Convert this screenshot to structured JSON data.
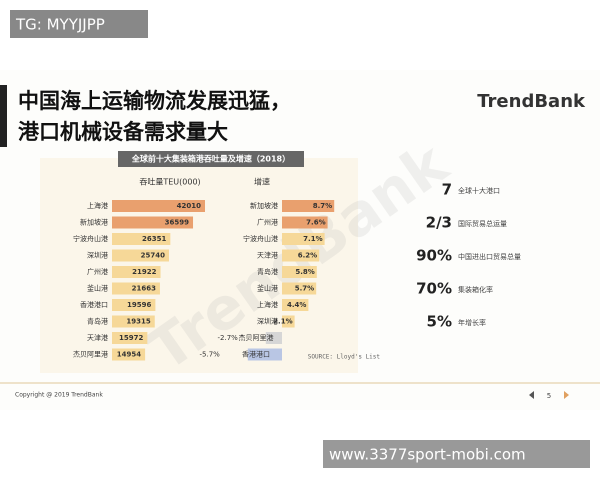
{
  "badge": "TG: MYYJJPP",
  "slide": {
    "title_lines": [
      "中国海上运输物流发展迅猛，",
      "港口机械设备需求量大"
    ],
    "logo": "TrendBank",
    "watermark": "TrendBank"
  },
  "chart": {
    "title": "全球前十大集装箱港吞吐量及增速（2018）",
    "left": {
      "header": "吞吐量TEU(000)",
      "rows": [
        {
          "label": "上海港",
          "value": 42010
        },
        {
          "label": "新加坡港",
          "value": 36599
        },
        {
          "label": "宁波舟山港",
          "value": 26351
        },
        {
          "label": "深圳港",
          "value": 25740
        },
        {
          "label": "广州港",
          "value": 21922
        },
        {
          "label": "釜山港",
          "value": 21663
        },
        {
          "label": "香港港口",
          "value": 19596
        },
        {
          "label": "青岛港",
          "value": 19315
        },
        {
          "label": "天津港",
          "value": 15972
        },
        {
          "label": "杰贝阿里港",
          "value": 14954
        }
      ]
    },
    "right": {
      "header": "增速",
      "rows": [
        {
          "label": "新加坡港",
          "value": 8.7,
          "value_label": "8.7%"
        },
        {
          "label": "广州港",
          "value": 7.6,
          "value_label": "7.6%"
        },
        {
          "label": "宁波舟山港",
          "value": 7.1,
          "value_label": "7.1%"
        },
        {
          "label": "天津港",
          "value": 6.2,
          "value_label": "6.2%"
        },
        {
          "label": "青岛港",
          "value": 5.8,
          "value_label": "5.8%"
        },
        {
          "label": "釜山港",
          "value": 5.7,
          "value_label": "5.7%"
        },
        {
          "label": "上海港",
          "value": 4.4,
          "value_label": "4.4%"
        },
        {
          "label": "深圳港",
          "value": 2.1,
          "value_label": "2.1%"
        },
        {
          "label": "杰贝阿里港",
          "value": -2.7,
          "value_label": "-2.7%"
        },
        {
          "label": "香港港口",
          "value": -5.7,
          "value_label": "-5.7%"
        }
      ]
    },
    "source": "SOURCE: Lloyd's List"
  },
  "stats": [
    {
      "big": "7",
      "text": "全球十大港口"
    },
    {
      "big": "2/3",
      "text": "国际贸易总运量"
    },
    {
      "big": "90%",
      "text": "中国进出口贸易总量"
    },
    {
      "big": "70%",
      "text": "集装箱化率"
    },
    {
      "big": "5%",
      "text": "年增长率"
    }
  ],
  "footer": {
    "copyright": "Copyright @ 2019 TrendBank",
    "page": "5"
  },
  "bottom_banner": "www.3377sport-mobi.com"
}
